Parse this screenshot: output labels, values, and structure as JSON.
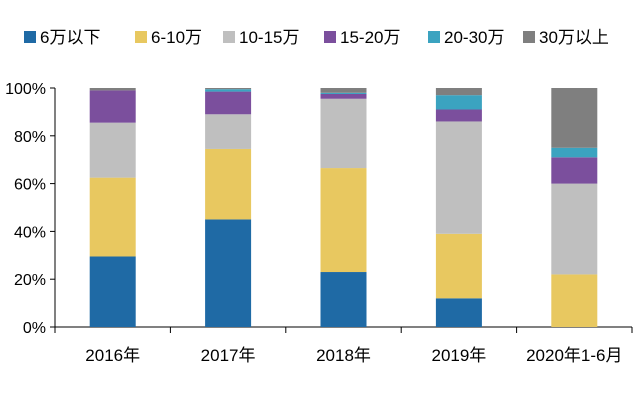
{
  "chart_data": {
    "type": "bar",
    "stacked": true,
    "categories": [
      "2016年",
      "2017年",
      "2018年",
      "2019年",
      "2020年1-6月"
    ],
    "series": [
      {
        "name": "6万以下",
        "color": "#1f6aa5",
        "values": [
          29.5,
          45,
          23,
          12,
          0
        ]
      },
      {
        "name": "6-10万",
        "color": "#e8c860",
        "values": [
          33,
          29.5,
          43.5,
          27,
          22
        ]
      },
      {
        "name": "10-15万",
        "color": "#bfbfbf",
        "values": [
          23,
          14.5,
          29,
          47,
          38
        ]
      },
      {
        "name": "15-20万",
        "color": "#7b4f9d",
        "values": [
          13.5,
          9.5,
          2,
          5,
          11
        ]
      },
      {
        "name": "20-30万",
        "color": "#3ba3c0",
        "values": [
          0,
          1,
          0.5,
          6,
          4
        ]
      },
      {
        "name": "30万以上",
        "color": "#7f7f7f",
        "values": [
          1,
          0.5,
          2,
          3,
          25
        ]
      }
    ],
    "y_ticks": [
      "0%",
      "20%",
      "40%",
      "60%",
      "80%",
      "100%"
    ],
    "ylim": [
      0,
      100
    ],
    "title": "",
    "xlabel": "",
    "ylabel": "",
    "grid": false,
    "legend_position": "top"
  }
}
